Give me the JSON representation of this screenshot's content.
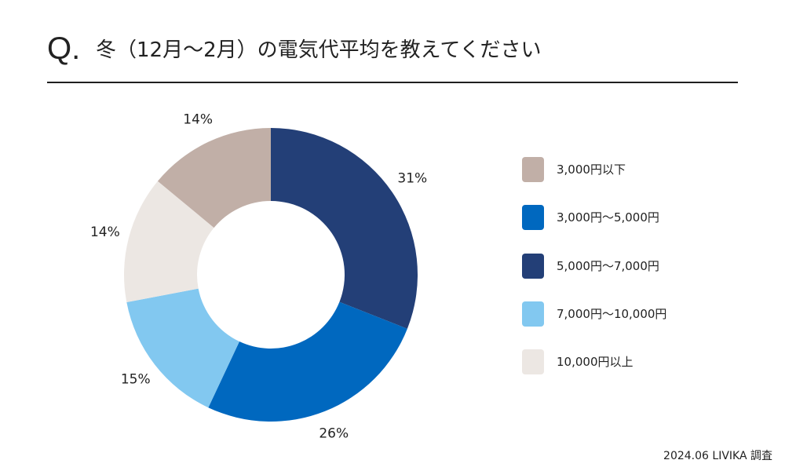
{
  "header": {
    "q_mark": "Q.",
    "title": "冬（12月〜2月）の電気代平均を教えてください"
  },
  "chart_data": {
    "type": "pie",
    "donut": true,
    "legend_position": "right",
    "categories": [
      "3,000円以下",
      "3,000円〜5,000円",
      "5,000円〜7,000円",
      "7,000円〜10,000円",
      "10,000円以上"
    ],
    "slices": [
      {
        "label": "5,000円〜7,000円",
        "value": 31,
        "value_label": "31%",
        "color": "#233f77"
      },
      {
        "label": "3,000円〜5,000円",
        "value": 26,
        "value_label": "26%",
        "color": "#0068bf"
      },
      {
        "label": "7,000円〜10,000円",
        "value": 15,
        "value_label": "15%",
        "color": "#82c8f0"
      },
      {
        "label": "10,000円以上",
        "value": 14,
        "value_label": "14%",
        "color": "#ece7e3"
      },
      {
        "label": "3,000円以下",
        "value": 14,
        "value_label": "14%",
        "color": "#c1afa7"
      }
    ]
  },
  "legend": {
    "items": [
      {
        "label": "3,000円以下",
        "color": "#c1afa7"
      },
      {
        "label": "3,000円〜5,000円",
        "color": "#0068bf"
      },
      {
        "label": "5,000円〜7,000円",
        "color": "#233f77"
      },
      {
        "label": "7,000円〜10,000円",
        "color": "#82c8f0"
      },
      {
        "label": "10,000円以上",
        "color": "#ece7e3"
      }
    ]
  },
  "footer": {
    "source": "2024.06 LIVIKA 調査"
  }
}
